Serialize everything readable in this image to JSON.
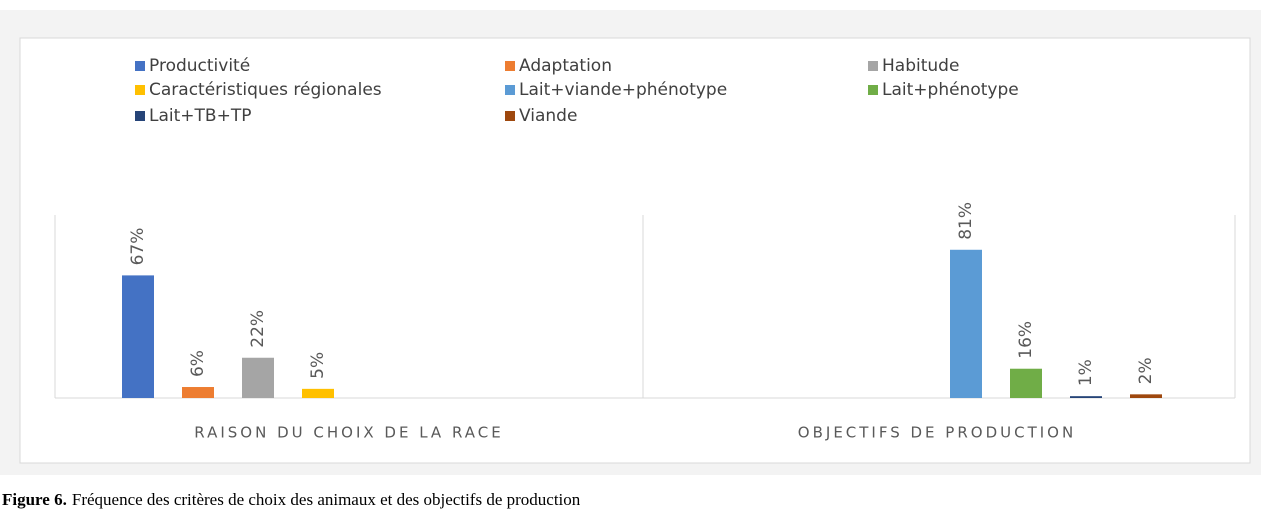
{
  "chart_data": {
    "type": "bar",
    "categories": [
      "RAISON DU CHOIX DE LA RACE",
      "OBJECTIFS DE PRODUCTION"
    ],
    "series": [
      {
        "name": "Productivité",
        "color": "#4472c4",
        "values": [
          67,
          null
        ],
        "value_labels": [
          "67%",
          null
        ]
      },
      {
        "name": "Adaptation",
        "color": "#ed7d31",
        "values": [
          6,
          null
        ],
        "value_labels": [
          "6%",
          null
        ]
      },
      {
        "name": "Habitude",
        "color": "#a5a5a5",
        "values": [
          22,
          null
        ],
        "value_labels": [
          "22%",
          null
        ]
      },
      {
        "name": "Caractéristiques régionales",
        "color": "#ffc000",
        "values": [
          5,
          null
        ],
        "value_labels": [
          "5%",
          null
        ]
      },
      {
        "name": "Lait+viande+phénotype",
        "color": "#5b9bd5",
        "values": [
          null,
          81
        ],
        "value_labels": [
          null,
          "81%"
        ]
      },
      {
        "name": "Lait+phénotype",
        "color": "#70ad47",
        "values": [
          null,
          16
        ],
        "value_labels": [
          null,
          "16%"
        ]
      },
      {
        "name": "Lait+TB+TP",
        "color": "#264478",
        "values": [
          null,
          1
        ],
        "value_labels": [
          null,
          "1%"
        ]
      },
      {
        "name": "Viande",
        "color": "#9e480e",
        "values": [
          null,
          2
        ],
        "value_labels": [
          null,
          "2%"
        ]
      }
    ],
    "ylim": [
      0,
      100
    ],
    "legend": "top",
    "grid": false
  },
  "caption": {
    "label": "Figure 6.",
    "text": "Fréquence des critères de choix des animaux et des objectifs de production"
  }
}
